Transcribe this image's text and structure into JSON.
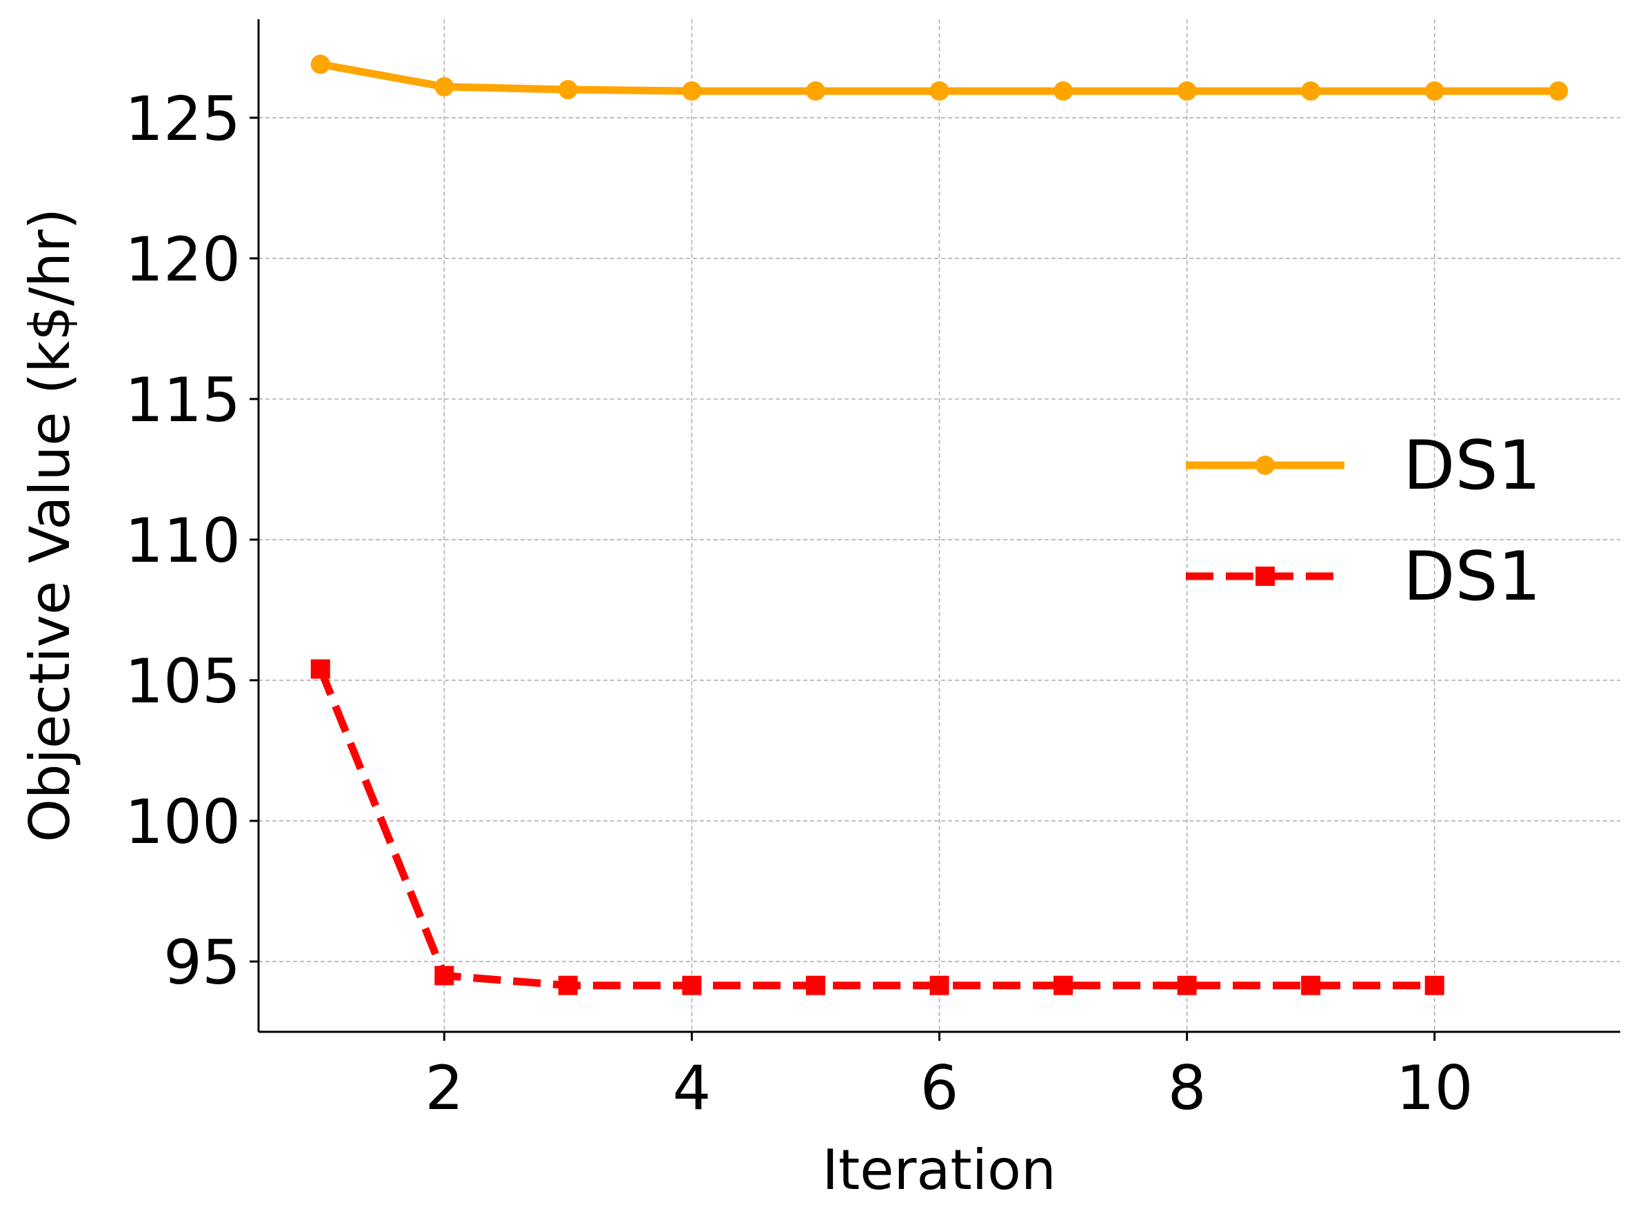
{
  "chart_data": {
    "type": "line",
    "xlabel": "Iteration",
    "ylabel": "Objective Value (k$/hr)",
    "xlim": [
      0.5,
      11.5
    ],
    "ylim": [
      92.5,
      128.5
    ],
    "xticks": [
      2,
      4,
      6,
      8,
      10
    ],
    "yticks": [
      95,
      100,
      105,
      110,
      115,
      120,
      125
    ],
    "grid": true,
    "legend_position": "center-right",
    "series": [
      {
        "name": "DS1",
        "color": "#FFA500",
        "line_style": "solid",
        "marker": "circle",
        "x": [
          1,
          2,
          3,
          4,
          5,
          6,
          7,
          8,
          9,
          10,
          11
        ],
        "values": [
          126.9,
          126.1,
          126.0,
          125.95,
          125.95,
          125.95,
          125.95,
          125.95,
          125.95,
          125.95,
          125.95
        ]
      },
      {
        "name": "DS1",
        "color": "#FF0000",
        "line_style": "dashed",
        "marker": "square",
        "x": [
          1,
          2,
          3,
          4,
          5,
          6,
          7,
          8,
          9,
          10
        ],
        "values": [
          105.4,
          94.5,
          94.15,
          94.15,
          94.15,
          94.15,
          94.15,
          94.15,
          94.15,
          94.15
        ]
      }
    ]
  }
}
